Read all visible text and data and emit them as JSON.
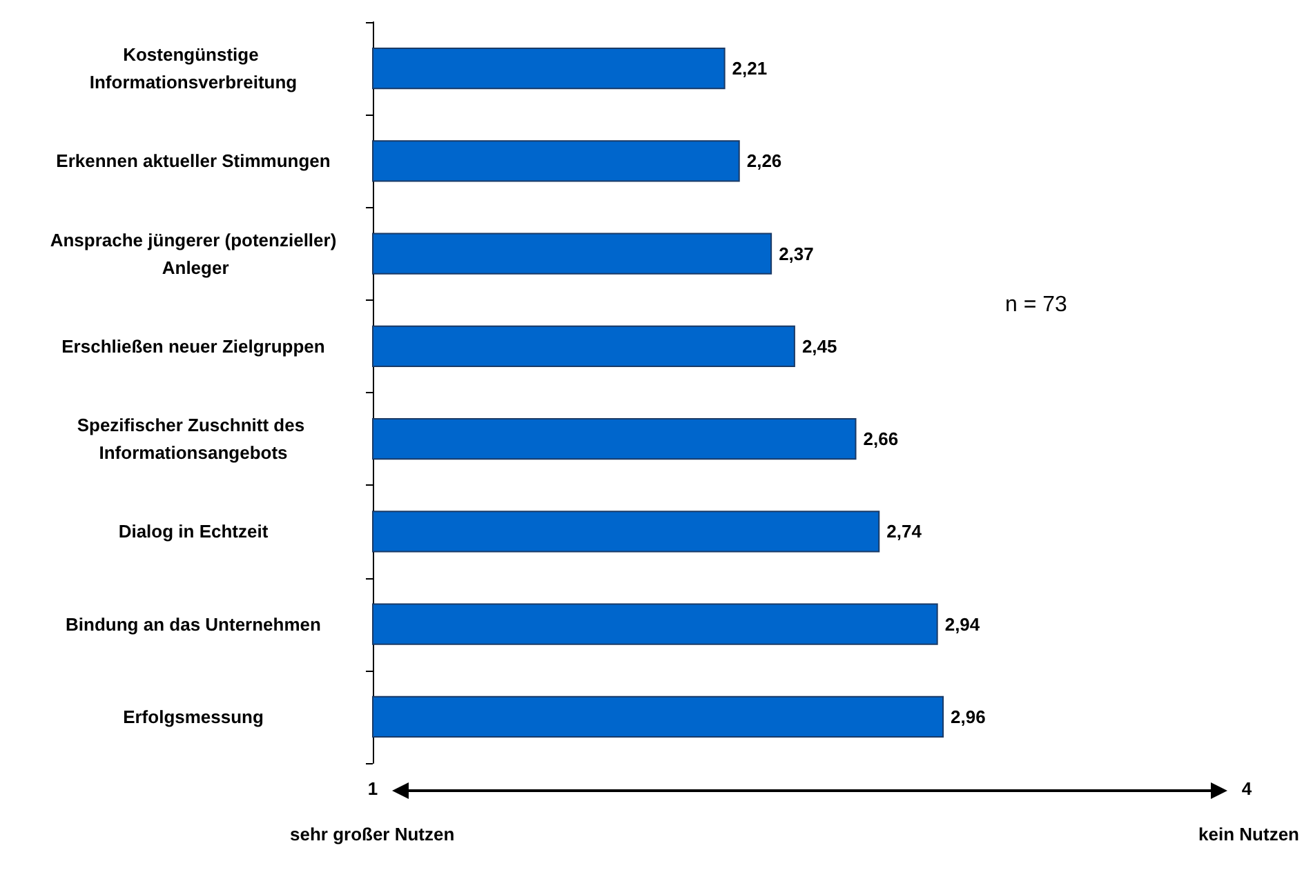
{
  "chart_data": {
    "type": "bar",
    "orientation": "horizontal",
    "categories": [
      "Kostengünstige Informationsverbreitung",
      "Erkennen aktueller Stimmungen",
      "Ansprache jüngerer (potenzieller) Anleger",
      "Erschließen neuer Zielgruppen",
      "Spezifischer Zuschnitt des Informationsangebots",
      "Dialog in Echtzeit",
      "Bindung an das Unternehmen",
      "Erfolgsmessung"
    ],
    "values": [
      2.21,
      2.26,
      2.37,
      2.45,
      2.66,
      2.74,
      2.94,
      2.96
    ],
    "value_labels": [
      "2,21",
      "2,26",
      "2,37",
      "2,45",
      "2,66",
      "2,74",
      "2,94",
      "2,96"
    ],
    "color": "#0066cc",
    "xlim": [
      1,
      4
    ],
    "xticks": [
      1,
      4
    ],
    "annotations": [
      "sehr großer Nutzen",
      "kein Nutzen",
      "n = 73"
    ],
    "grid": false
  }
}
